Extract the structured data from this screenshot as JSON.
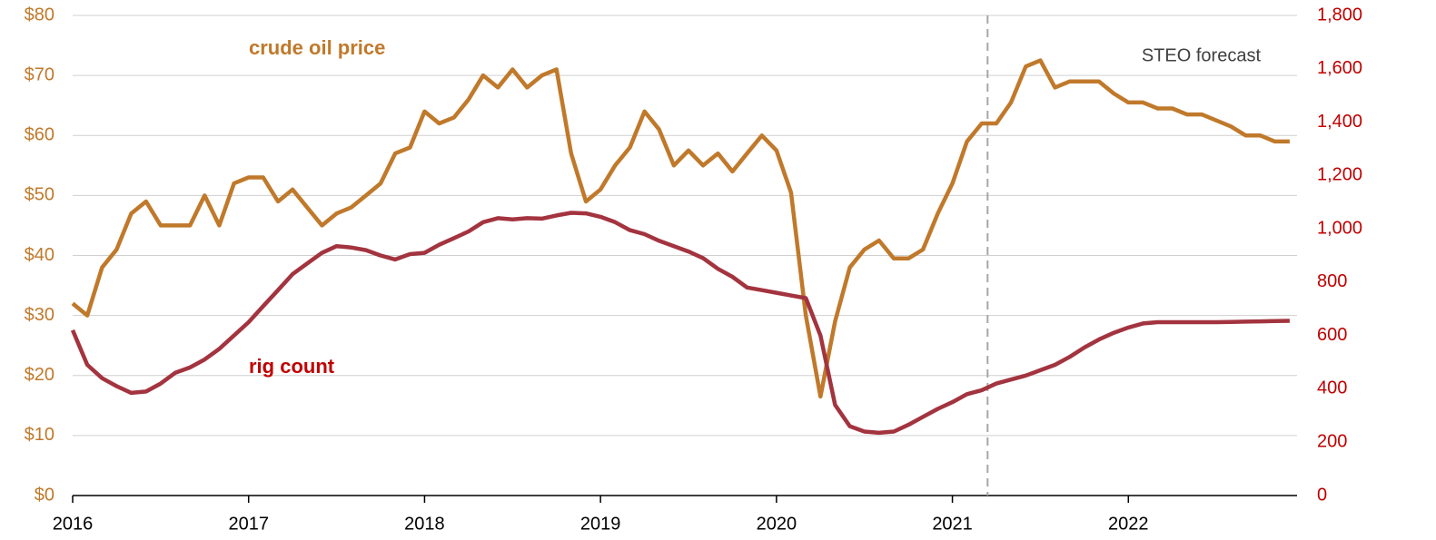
{
  "chart_data": {
    "type": "line",
    "x": [
      2016,
      2016.083,
      2016.167,
      2016.25,
      2016.333,
      2016.417,
      2016.5,
      2016.583,
      2016.667,
      2016.75,
      2016.833,
      2016.917,
      2017,
      2017.083,
      2017.167,
      2017.25,
      2017.333,
      2017.417,
      2017.5,
      2017.583,
      2017.667,
      2017.75,
      2017.833,
      2017.917,
      2018,
      2018.083,
      2018.167,
      2018.25,
      2018.333,
      2018.417,
      2018.5,
      2018.583,
      2018.667,
      2018.75,
      2018.833,
      2018.917,
      2019,
      2019.083,
      2019.167,
      2019.25,
      2019.333,
      2019.417,
      2019.5,
      2019.583,
      2019.667,
      2019.75,
      2019.833,
      2019.917,
      2020,
      2020.083,
      2020.167,
      2020.25,
      2020.333,
      2020.417,
      2020.5,
      2020.583,
      2020.667,
      2020.75,
      2020.833,
      2020.917,
      2021,
      2021.083,
      2021.167,
      2021.25,
      2021.333,
      2021.417,
      2021.5,
      2021.583,
      2021.667,
      2021.75,
      2021.833,
      2021.917,
      2022,
      2022.083,
      2022.167,
      2022.25,
      2022.333,
      2022.417,
      2022.5,
      2022.583,
      2022.667,
      2022.75,
      2022.833,
      2022.917
    ],
    "series": [
      {
        "name": "crude oil price",
        "color": "#c0792b",
        "values": [
          32,
          30,
          38,
          41,
          47,
          49,
          45,
          45,
          45,
          50,
          45,
          52,
          53,
          53,
          49,
          51,
          48,
          45,
          47,
          48,
          50,
          52,
          57,
          58,
          64,
          62,
          63,
          66,
          70,
          68,
          71,
          68,
          70,
          71,
          57,
          49,
          51,
          55,
          58,
          64,
          61,
          55,
          57.5,
          55,
          57,
          54,
          57,
          60,
          57.5,
          50.5,
          30,
          16.5,
          29,
          38,
          41,
          42.5,
          39.5,
          39.5,
          41,
          47,
          52,
          59,
          62,
          62,
          65.5,
          71.5,
          72.5,
          68,
          69,
          69,
          69,
          67,
          65.5,
          65.5,
          64.5,
          64.5,
          63.5,
          63.5,
          62.5,
          61.5,
          60,
          60,
          59,
          59
        ]
      },
      {
        "name": "rig count",
        "color": "#a3343f",
        "axis": "y2",
        "values": [
          620,
          490,
          440,
          410,
          385,
          390,
          420,
          460,
          480,
          510,
          550,
          600,
          650,
          710,
          770,
          830,
          870,
          910,
          935,
          930,
          920,
          900,
          885,
          905,
          910,
          940,
          965,
          990,
          1025,
          1040,
          1035,
          1040,
          1038,
          1050,
          1060,
          1058,
          1045,
          1025,
          995,
          980,
          955,
          935,
          915,
          890,
          850,
          820,
          780,
          770,
          760,
          750,
          740,
          600,
          340,
          260,
          240,
          235,
          240,
          265,
          295,
          325,
          350,
          380,
          395,
          420,
          435,
          450,
          470,
          490,
          520,
          555,
          585,
          610,
          630,
          645,
          650,
          650,
          650,
          650,
          650,
          651,
          652,
          653,
          654,
          655
        ]
      }
    ],
    "xlim": [
      2016,
      2023
    ],
    "xticks": [
      2016,
      2017,
      2018,
      2019,
      2020,
      2021,
      2022
    ],
    "ylim": [
      0,
      80
    ],
    "yticks": [
      {
        "value": 0,
        "label": "$0"
      },
      {
        "value": 10,
        "label": "$10"
      },
      {
        "value": 20,
        "label": "$20"
      },
      {
        "value": 30,
        "label": "$30"
      },
      {
        "value": 40,
        "label": "$40"
      },
      {
        "value": 50,
        "label": "$50"
      },
      {
        "value": 60,
        "label": "$60"
      },
      {
        "value": 70,
        "label": "$70"
      },
      {
        "value": 80,
        "label": "$80"
      }
    ],
    "y2lim": [
      0,
      1800
    ],
    "y2ticks": [
      0,
      200,
      400,
      600,
      800,
      {
        "value": 1000,
        "label": "1,000"
      },
      {
        "value": 1200,
        "label": "1,200"
      },
      {
        "value": 1400,
        "label": "1,400"
      },
      {
        "value": 1600,
        "label": "1,600"
      },
      {
        "value": 1800,
        "label": "1,800"
      }
    ],
    "grid": true,
    "forecast": {
      "x": 2021.2,
      "label": "STEO forecast"
    }
  }
}
